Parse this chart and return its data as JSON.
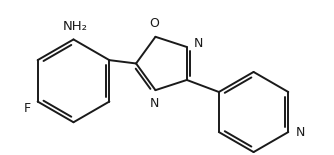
{
  "background_color": "#ffffff",
  "line_color": "#1a1a1a",
  "line_width": 1.4,
  "font_size": 9.5,
  "atoms": {
    "NH2_label": "NH₂",
    "F_label": "F",
    "O_label": "O",
    "N1_label": "N",
    "N2_label": "N",
    "N3_label": "N"
  },
  "figsize": [
    3.34,
    1.55
  ],
  "dpi": 100
}
